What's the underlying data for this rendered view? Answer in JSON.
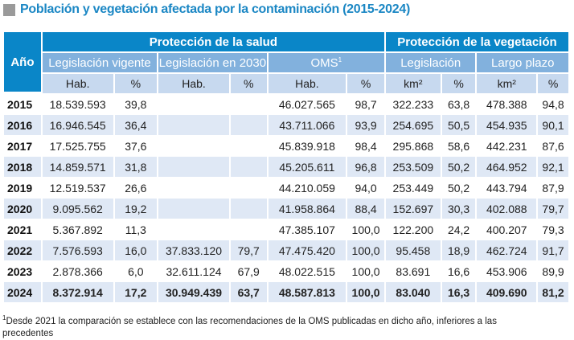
{
  "title": "Población y vegetación afectada por la contaminación (2015-2024)",
  "header": {
    "year": "Año",
    "group_health": "Protección de la salud",
    "group_vegetation": "Protección de la vegetación",
    "sub": [
      "Legislación vigente",
      "Legislación en 2030",
      "OMS",
      "Legislación",
      "Largo plazo"
    ],
    "oms_sup": "1",
    "units": [
      "Hab.",
      "%",
      "Hab.",
      "%",
      "Hab.",
      "%",
      "km²",
      "%",
      "km²",
      "%"
    ]
  },
  "rows": [
    [
      "2015",
      "18.539.593",
      "39,8",
      "",
      "",
      "46.027.565",
      "98,7",
      "322.233",
      "63,8",
      "478.388",
      "94,8"
    ],
    [
      "2016",
      "16.946.545",
      "36,4",
      "",
      "",
      "43.711.066",
      "93,9",
      "254.695",
      "50,5",
      "454.935",
      "90,1"
    ],
    [
      "2017",
      "17.525.755",
      "37,6",
      "",
      "",
      "45.839.918",
      "98,4",
      "295.868",
      "58,6",
      "442.231",
      "87,6"
    ],
    [
      "2018",
      "14.859.571",
      "31,8",
      "",
      "",
      "45.205.611",
      "96,8",
      "253.509",
      "50,2",
      "464.952",
      "92,1"
    ],
    [
      "2019",
      "12.519.537",
      "26,6",
      "",
      "",
      "44.210.059",
      "94,0",
      "253.449",
      "50,2",
      "443.794",
      "87,9"
    ],
    [
      "2020",
      "9.095.562",
      "19,2",
      "",
      "",
      "41.958.864",
      "88,4",
      "152.697",
      "30,3",
      "402.088",
      "79,7"
    ],
    [
      "2021",
      "5.367.892",
      "11,3",
      "",
      "",
      "47.385.107",
      "100,0",
      "122.200",
      "24,2",
      "400.207",
      "79,3"
    ],
    [
      "2022",
      "7.576.593",
      "16,0",
      "37.833.120",
      "79,7",
      "47.475.420",
      "100,0",
      "95.458",
      "18,9",
      "462.724",
      "91,7"
    ],
    [
      "2023",
      "2.878.366",
      "6,0",
      "32.611.124",
      "67,9",
      "48.022.515",
      "100,0",
      "83.691",
      "16,6",
      "453.906",
      "89,9"
    ],
    [
      "2024",
      "8.372.914",
      "17,2",
      "30.949.439",
      "63,7",
      "48.587.813",
      "100,0",
      "83.040",
      "16,3",
      "409.690",
      "81,2"
    ]
  ],
  "footnote_sup": "1",
  "footnote": "Desde 2021 la comparación se establece con las recomendaciones de la OMS publicadas en dicho año, inferiores a las precedentes"
}
